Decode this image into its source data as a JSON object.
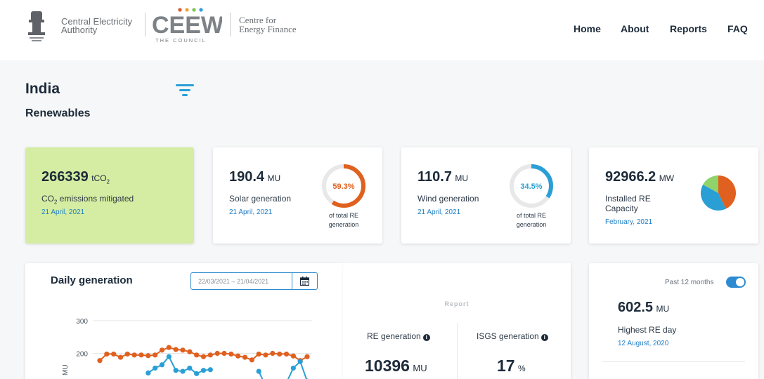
{
  "header": {
    "cea_line1": "Central Electricity",
    "cea_line2": "Authority",
    "ceew_logo": "CEEW",
    "ceew_sub": "THE COUNCIL",
    "cef_line1": "Centre for",
    "cef_line2": "Energy Finance",
    "nav": [
      {
        "label": "Home"
      },
      {
        "label": "About"
      },
      {
        "label": "Reports"
      },
      {
        "label": "FAQ"
      }
    ]
  },
  "page": {
    "title": "India",
    "section": "Renewables",
    "filter_icon": "filter-icon"
  },
  "cards": {
    "co2": {
      "value": "266339",
      "unit": "tCO",
      "unit_sub": "2",
      "label_pre": "CO",
      "label_sub": "2",
      "label_post": " emissions mitigated",
      "date": "21 April, 2021"
    },
    "solar": {
      "value": "190.4",
      "unit": "MU",
      "label": "Solar generation",
      "date": "21 April, 2021",
      "percent_text": "59.3%",
      "percent": 59.3,
      "note1": "of total RE",
      "note2": "generation",
      "color": "#e0601f"
    },
    "wind": {
      "value": "110.7",
      "unit": "MU",
      "label": "Wind generation",
      "date": "21 April, 2021",
      "percent_text": "34.5%",
      "percent": 34.5,
      "note1": "of total RE",
      "note2": "generation",
      "color": "#2a9fd6"
    },
    "capacity": {
      "value": "92966.2",
      "unit": "MW",
      "label1": "Installed RE",
      "label2": "Capacity",
      "date": "February, 2021",
      "pie": [
        {
          "value": 0.43,
          "color": "#e0601f"
        },
        {
          "value": 0.4,
          "color": "#2a9fd6"
        },
        {
          "value": 0.17,
          "color": "#8fd36a"
        }
      ]
    }
  },
  "daily": {
    "title": "Daily generation",
    "date_range": "22/03/2021  – 21/04/2021",
    "calendar_icon": "calendar-icon"
  },
  "report": {
    "title": "Report",
    "re_label": "RE generation",
    "re_value": "10396",
    "re_unit": "MU",
    "isgs_label": "ISGS generation",
    "isgs_value": "17",
    "isgs_unit": "%"
  },
  "highest": {
    "toggle_label": "Past 12 months",
    "value": "602.5",
    "unit": "MU",
    "label": "Highest RE day",
    "date": "12 August, 2020"
  },
  "chart_data": {
    "type": "line",
    "ylabel": "MU",
    "yticks": [
      "300",
      "200"
    ],
    "ylim": [
      0,
      300
    ],
    "grid": true,
    "x": [
      1,
      2,
      3,
      4,
      5,
      6,
      7,
      8,
      9,
      10,
      11,
      12,
      13,
      14,
      15,
      16,
      17,
      18,
      19,
      20,
      21,
      22,
      23,
      24,
      25,
      26,
      27,
      28,
      29,
      30,
      31
    ],
    "series": [
      {
        "color": "#e0601f",
        "values": [
          178,
          198,
          198,
          188,
          198,
          195,
          195,
          193,
          195,
          210,
          218,
          212,
          210,
          205,
          195,
          190,
          195,
          200,
          200,
          198,
          192,
          188,
          180,
          198,
          195,
          200,
          198,
          198,
          192,
          178,
          190
        ]
      },
      {
        "color": "#2a9fd6",
        "values": [
          null,
          null,
          null,
          null,
          null,
          null,
          null,
          140,
          155,
          165,
          190,
          148,
          145,
          155,
          138,
          148,
          150,
          null,
          null,
          null,
          null,
          null,
          null,
          145,
          100,
          null,
          null,
          110,
          155,
          175,
          115
        ]
      }
    ]
  }
}
